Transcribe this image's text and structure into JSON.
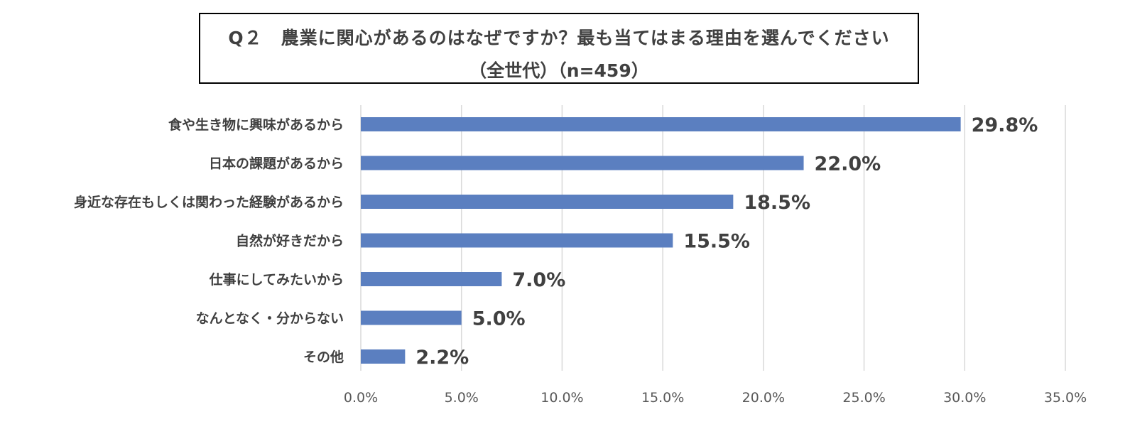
{
  "chart_data": {
    "type": "bar",
    "orientation": "horizontal",
    "title": "Q２　農業に関心があるのはなぜですか？最も当てはまる理由を選んでください",
    "subtitle": "（全世代）（n=459）",
    "categories": [
      "食や生き物に興味があるから",
      "日本の課題があるから",
      "身近な存在もしくは関わった経験があるから",
      "自然が好きだから",
      "仕事にしてみたいから",
      "なんとなく・分からない",
      "その他"
    ],
    "values": [
      29.8,
      22.0,
      18.5,
      15.5,
      7.0,
      5.0,
      2.2
    ],
    "value_labels": [
      "29.8%",
      "22.0%",
      "18.5%",
      "15.5%",
      "7.0%",
      "5.0%",
      "2.2%"
    ],
    "xlim": [
      0,
      35
    ],
    "xticks": [
      0,
      5,
      10,
      15,
      20,
      25,
      30,
      35
    ],
    "xtick_labels": [
      "0.0%",
      "5.0%",
      "10.0%",
      "15.0%",
      "20.0%",
      "25.0%",
      "30.0%",
      "35.0%"
    ],
    "grid": "vertical",
    "legend": "none",
    "bar_color": "#5B7FC0",
    "grid_color": "#D9D9D9"
  }
}
